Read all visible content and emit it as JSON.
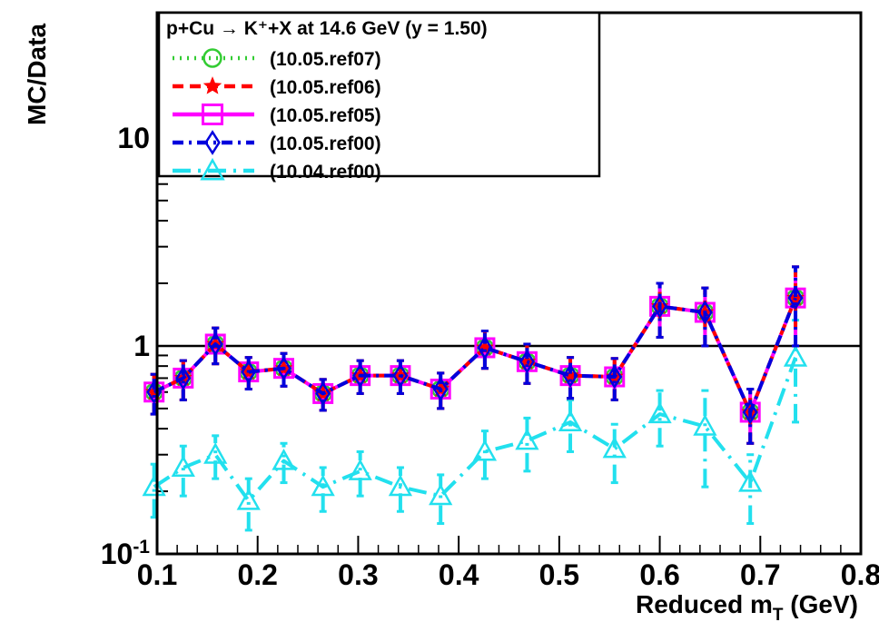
{
  "chart_data": {
    "type": "line",
    "title": "",
    "legend_header": "p+Cu → K⁺+X at 14.6 GeV (y = 1.50)",
    "xlabel": "Reduced m",
    "xlabel_sub": "T",
    "xlabel_unit": " (GeV)",
    "ylabel": "MC/Data",
    "xlim": [
      0.1,
      0.8
    ],
    "ylim": [
      0.1,
      40
    ],
    "yscale": "log",
    "x_ticks": [
      "0.1",
      "0.2",
      "0.3",
      "0.4",
      "0.5",
      "0.6",
      "0.7",
      "0.8"
    ],
    "y_tick_labels": [
      {
        "value": 0.1,
        "base": "10",
        "exp": "-1"
      },
      {
        "value": 1,
        "base": "1",
        "exp": ""
      },
      {
        "value": 10,
        "base": "10",
        "exp": ""
      }
    ],
    "reference_line": 1,
    "grid": false,
    "legend_position": "top-left",
    "x": [
      0.097,
      0.126,
      0.158,
      0.191,
      0.226,
      0.265,
      0.302,
      0.342,
      0.382,
      0.426,
      0.468,
      0.511,
      0.555,
      0.6,
      0.645,
      0.69,
      0.735
    ],
    "series": [
      {
        "name": "(10.05.ref07)",
        "color": "#33cc33",
        "dash": "2,6",
        "marker": "circle",
        "values": [
          0.6,
          0.7,
          1.02,
          0.75,
          0.78,
          0.59,
          0.72,
          0.72,
          0.62,
          0.98,
          0.84,
          0.72,
          0.71,
          1.55,
          1.45,
          0.48,
          1.7
        ],
        "errors": [
          0.13,
          0.15,
          0.2,
          0.13,
          0.14,
          0.1,
          0.13,
          0.13,
          0.12,
          0.2,
          0.18,
          0.16,
          0.16,
          0.45,
          0.45,
          0.14,
          0.7
        ]
      },
      {
        "name": "(10.05.ref06)",
        "color": "#ff0000",
        "dash": "12,7",
        "marker": "star",
        "values": [
          0.6,
          0.7,
          1.02,
          0.75,
          0.78,
          0.59,
          0.72,
          0.72,
          0.62,
          0.98,
          0.84,
          0.72,
          0.71,
          1.55,
          1.45,
          0.48,
          1.7
        ],
        "errors": [
          0.13,
          0.15,
          0.2,
          0.13,
          0.14,
          0.1,
          0.13,
          0.13,
          0.12,
          0.2,
          0.18,
          0.16,
          0.16,
          0.45,
          0.45,
          0.14,
          0.7
        ]
      },
      {
        "name": "(10.05.ref05)",
        "color": "#ff00ff",
        "dash": "",
        "marker": "square",
        "values": [
          0.6,
          0.7,
          1.02,
          0.75,
          0.78,
          0.59,
          0.72,
          0.72,
          0.62,
          0.98,
          0.84,
          0.72,
          0.71,
          1.55,
          1.45,
          0.48,
          1.7
        ],
        "errors": [
          0.13,
          0.15,
          0.2,
          0.13,
          0.14,
          0.1,
          0.13,
          0.13,
          0.12,
          0.2,
          0.18,
          0.16,
          0.16,
          0.45,
          0.45,
          0.14,
          0.7
        ]
      },
      {
        "name": "(10.05.ref00)",
        "color": "#0000dd",
        "dash": "12,6,3,6",
        "marker": "diamond",
        "values": [
          0.6,
          0.7,
          1.02,
          0.75,
          0.78,
          0.59,
          0.72,
          0.72,
          0.62,
          0.98,
          0.84,
          0.72,
          0.71,
          1.55,
          1.45,
          0.48,
          1.7
        ],
        "errors": [
          0.13,
          0.15,
          0.2,
          0.13,
          0.14,
          0.1,
          0.13,
          0.13,
          0.12,
          0.2,
          0.18,
          0.16,
          0.16,
          0.45,
          0.45,
          0.14,
          0.7
        ]
      },
      {
        "name": "(10.04.ref00)",
        "color": "#22e0ee",
        "dash": "20,8,3,8",
        "marker": "triangle",
        "values": [
          0.21,
          0.26,
          0.3,
          0.18,
          0.28,
          0.21,
          0.25,
          0.21,
          0.19,
          0.31,
          0.35,
          0.43,
          0.32,
          0.47,
          0.41,
          0.22,
          0.88
        ],
        "errors": [
          0.06,
          0.07,
          0.07,
          0.05,
          0.06,
          0.05,
          0.06,
          0.05,
          0.05,
          0.08,
          0.1,
          0.12,
          0.1,
          0.14,
          0.2,
          0.08,
          0.45
        ]
      }
    ]
  }
}
